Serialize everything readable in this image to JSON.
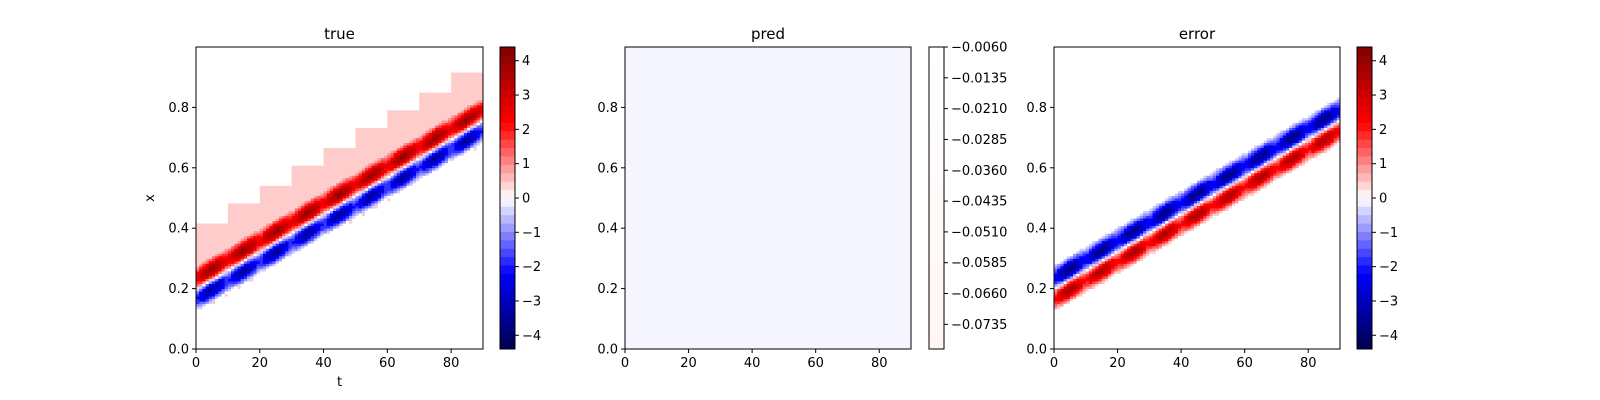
{
  "chart_data": [
    {
      "type": "heatmap",
      "title": "true",
      "xlabel": "t",
      "ylabel": "x",
      "xlim": [
        0,
        90
      ],
      "ylim": [
        0,
        1
      ],
      "xticks": [
        0,
        20,
        40,
        60,
        80
      ],
      "yticks": [
        0.0,
        0.2,
        0.4,
        0.6,
        0.8
      ],
      "colormap": "seismic",
      "colorbar": {
        "ticks": [
          4,
          3,
          2,
          1,
          0,
          -1,
          -2,
          -3,
          -4
        ],
        "range": [
          -4.4,
          4.4
        ]
      },
      "field": {
        "description_values": "traveling wave packet: positive lobe above, negative lobe below",
        "center_start": 0.2,
        "center_slope_per_t": 0.0062,
        "amplitude": 4.3,
        "background_low": -0.1,
        "background_high": 0.1
      }
    },
    {
      "type": "heatmap",
      "title": "pred",
      "xlabel": "",
      "ylabel": "",
      "xlim": [
        0,
        90
      ],
      "ylim": [
        0,
        1
      ],
      "xticks": [
        0,
        20,
        40,
        60,
        80
      ],
      "yticks": [
        0.0,
        0.2,
        0.4,
        0.6,
        0.8
      ],
      "colormap": "seismic",
      "colorbar": {
        "ticks": [
          -0.006,
          -0.0135,
          -0.021,
          -0.0285,
          -0.036,
          -0.0435,
          -0.051,
          -0.0585,
          -0.066,
          -0.0735
        ],
        "tick_labels": [
          "−0.0060",
          "−0.0135",
          "−0.0210",
          "−0.0285",
          "−0.0360",
          "−0.0435",
          "−0.0510",
          "−0.0585",
          "−0.0660",
          "−0.0735"
        ],
        "range": [
          -0.0795,
          -0.006
        ]
      },
      "field": {
        "approximately_constant": -0.04
      }
    },
    {
      "type": "heatmap",
      "title": "error",
      "xlabel": "",
      "ylabel": "",
      "xlim": [
        0,
        90
      ],
      "ylim": [
        0,
        1
      ],
      "xticks": [
        0,
        20,
        40,
        60,
        80
      ],
      "yticks": [
        0.0,
        0.2,
        0.4,
        0.6,
        0.8
      ],
      "colormap": "seismic",
      "colorbar": {
        "ticks": [
          4,
          3,
          2,
          1,
          0,
          -1,
          -2,
          -3,
          -4
        ],
        "range": [
          -4.4,
          4.4
        ]
      },
      "field": {
        "description_values": "negated wave packet: negative lobe above, positive lobe below",
        "center_start": 0.2,
        "center_slope_per_t": 0.0062,
        "amplitude": 4.3
      }
    }
  ]
}
